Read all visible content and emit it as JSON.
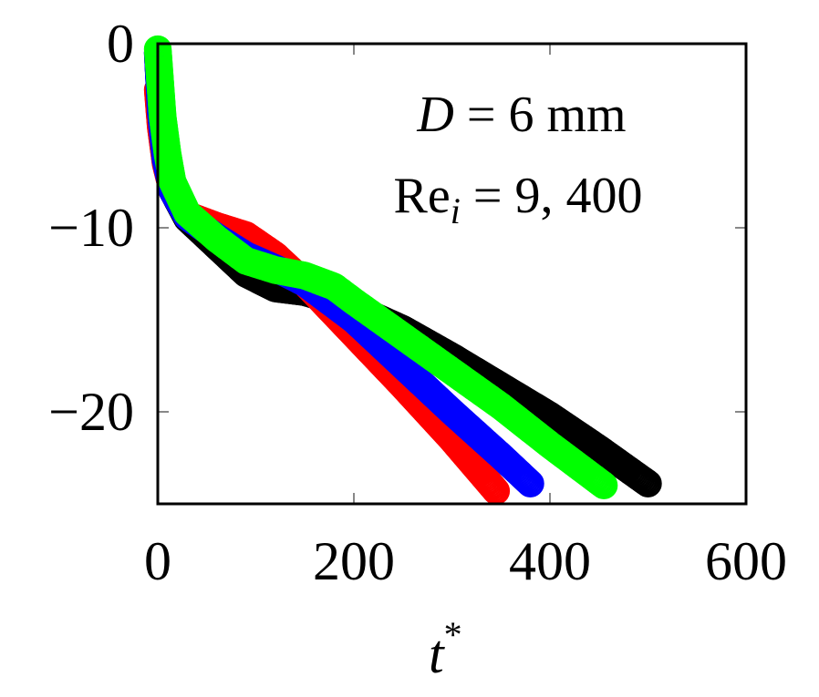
{
  "chart_data": {
    "type": "scatter",
    "title": "",
    "xlabel": "t",
    "xlabel_sup": "*",
    "ylabel": "",
    "xlim": [
      0,
      600
    ],
    "ylim": [
      -25,
      0
    ],
    "x_ticks": [
      0,
      200,
      400,
      600
    ],
    "y_ticks": [
      0,
      -10,
      -20
    ],
    "x_tick_labels": [
      "0",
      "200",
      "400",
      "600"
    ],
    "y_tick_labels": [
      "0",
      "−10",
      "−20"
    ],
    "grid": false,
    "legend": "none",
    "annotations": {
      "line1_var": "D",
      "line1_rest": " = 6 mm",
      "line2_var": "Re",
      "line2_sub": "i",
      "line2_rest": " = 9, 400"
    },
    "series": [
      {
        "color": "#000000",
        "points": [
          [
            0,
            -0.5
          ],
          [
            3,
            -3.5
          ],
          [
            8,
            -6
          ],
          [
            15,
            -8
          ],
          [
            30,
            -9.5
          ],
          [
            60,
            -11
          ],
          [
            90,
            -12.5
          ],
          [
            120,
            -13.3
          ],
          [
            150,
            -13.5
          ],
          [
            200,
            -14.3
          ],
          [
            250,
            -15.5
          ],
          [
            300,
            -17
          ],
          [
            350,
            -18.6
          ],
          [
            400,
            -20.2
          ],
          [
            450,
            -22
          ],
          [
            500,
            -23.9
          ]
        ]
      },
      {
        "color": "#ff0000",
        "points": [
          [
            0,
            -2.5
          ],
          [
            3,
            -4.5
          ],
          [
            8,
            -6.5
          ],
          [
            15,
            -8
          ],
          [
            30,
            -9.3
          ],
          [
            60,
            -9.9
          ],
          [
            90,
            -10.4
          ],
          [
            120,
            -11.5
          ],
          [
            150,
            -13
          ],
          [
            200,
            -15.8
          ],
          [
            250,
            -18.6
          ],
          [
            300,
            -21.5
          ],
          [
            345,
            -24.3
          ]
        ]
      },
      {
        "color": "#0000ff",
        "points": [
          [
            0,
            -0.5
          ],
          [
            3,
            -3.7
          ],
          [
            8,
            -6.3
          ],
          [
            15,
            -8
          ],
          [
            30,
            -9.4
          ],
          [
            60,
            -10.5
          ],
          [
            90,
            -11.5
          ],
          [
            120,
            -12.2
          ],
          [
            150,
            -13
          ],
          [
            200,
            -15
          ],
          [
            250,
            -17.5
          ],
          [
            300,
            -20
          ],
          [
            350,
            -22.4
          ],
          [
            380,
            -23.9
          ]
        ]
      },
      {
        "color": "#00ff00",
        "points": [
          [
            0,
            -0.3
          ],
          [
            5,
            -4
          ],
          [
            10,
            -6
          ],
          [
            15,
            -7.5
          ],
          [
            30,
            -9.2
          ],
          [
            60,
            -10.6
          ],
          [
            90,
            -11.8
          ],
          [
            120,
            -12.3
          ],
          [
            150,
            -12.6
          ],
          [
            180,
            -13.2
          ],
          [
            200,
            -14
          ],
          [
            250,
            -15.9
          ],
          [
            300,
            -17.8
          ],
          [
            350,
            -19.7
          ],
          [
            400,
            -21.8
          ],
          [
            455,
            -24
          ]
        ]
      }
    ]
  }
}
